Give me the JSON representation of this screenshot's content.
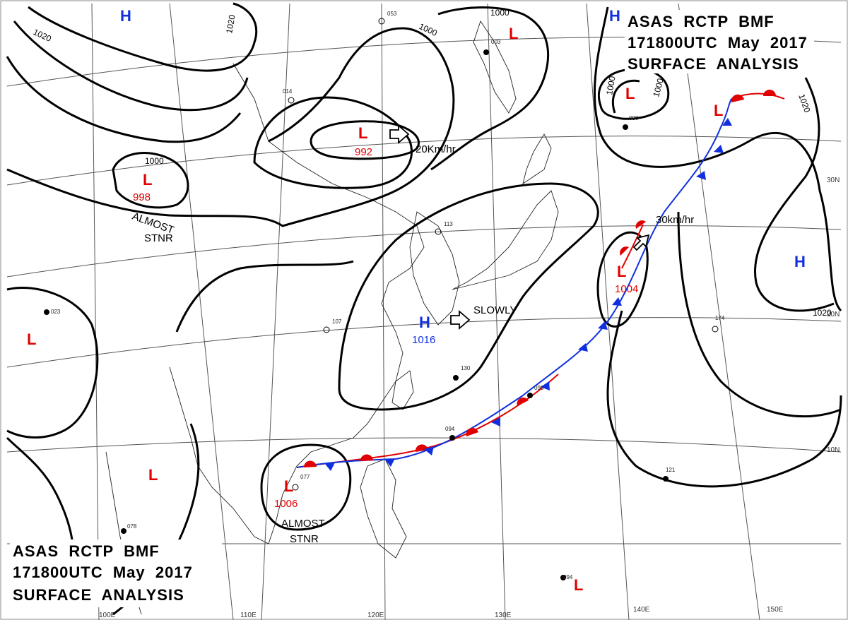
{
  "title": {
    "top_right": [
      "ASAS  RCTP  BMF",
      "171800UTC  May  2017",
      "SURFACE  ANALYSIS"
    ],
    "bottom_left": [
      "ASAS  RCTP  BMF",
      "171800UTC  May  2017",
      "SURFACE  ANALYSIS"
    ]
  },
  "colors": {
    "low": "#e00000",
    "high": "#1030e0",
    "warm_front": "#e00000",
    "cold_front": "#1030e0",
    "isobar": "#000000"
  },
  "pressure_centers": [
    {
      "type": "H",
      "letter": "H",
      "value": ""
    },
    {
      "type": "H",
      "letter": "H",
      "value": ""
    },
    {
      "type": "H",
      "letter": "H",
      "value": "1016"
    },
    {
      "type": "H",
      "letter": "H",
      "value": ""
    },
    {
      "type": "L",
      "letter": "L",
      "value": "992"
    },
    {
      "type": "L",
      "letter": "L",
      "value": "998"
    },
    {
      "type": "L",
      "letter": "L",
      "value": ""
    },
    {
      "type": "L",
      "letter": "L",
      "value": ""
    },
    {
      "type": "L",
      "letter": "L",
      "value": ""
    },
    {
      "type": "L",
      "letter": "L",
      "value": "1004"
    },
    {
      "type": "L",
      "letter": "L",
      "value": "1006"
    },
    {
      "type": "L",
      "letter": "L",
      "value": ""
    },
    {
      "type": "L",
      "letter": "L",
      "value": ""
    }
  ],
  "isobar_labels": [
    "1020",
    "1020",
    "1000",
    "1000",
    "1000",
    "1000",
    "1000",
    "1020",
    "1020"
  ],
  "annotations": [
    {
      "text": "20Km/hr"
    },
    {
      "text": "30km/hr"
    },
    {
      "text": "SLOWLY"
    },
    {
      "text": "ALMOST"
    },
    {
      "text": "STNR"
    },
    {
      "text": "ALMOST"
    },
    {
      "text": "STNR"
    }
  ],
  "latitude_labels": [
    "30N",
    "20N",
    "10N"
  ],
  "longitude_labels": [
    "100E",
    "110E",
    "120E",
    "130E",
    "140E",
    "150E"
  ]
}
